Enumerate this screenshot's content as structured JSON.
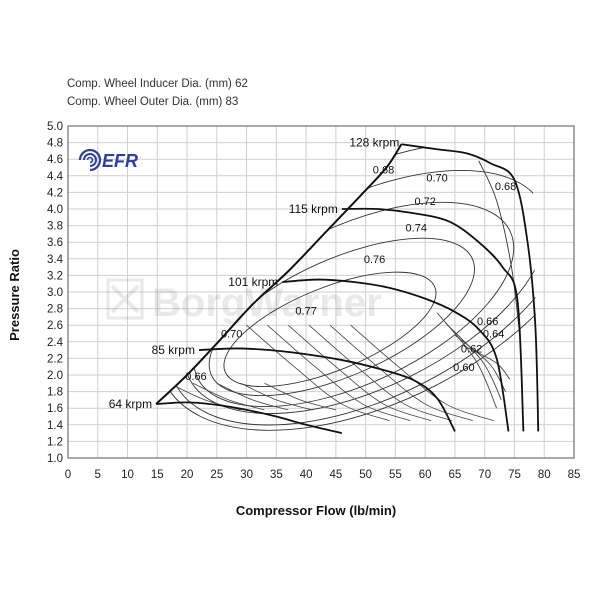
{
  "specs": {
    "inducer": "Comp. Wheel Inducer Dia. (mm) 62",
    "outer": "Comp. Wheel Outer Dia. (mm) 83"
  },
  "logo": {
    "text": "EFR",
    "color": "#2f3f9f"
  },
  "watermark": {
    "text": "BorgWarner"
  },
  "chart_data": {
    "type": "line",
    "title": "",
    "xlabel": "Compressor Flow (lb/min)",
    "ylabel": "Pressure Ratio",
    "xlim": [
      0,
      85
    ],
    "ylim": [
      1.0,
      5.0
    ],
    "x_ticks": [
      "0",
      "5",
      "10",
      "15",
      "20",
      "25",
      "30",
      "35",
      "40",
      "45",
      "50",
      "55",
      "60",
      "65",
      "70",
      "75",
      "80",
      "85"
    ],
    "y_ticks": [
      "1.0",
      "1.2",
      "1.4",
      "1.6",
      "1.8",
      "2.0",
      "2.2",
      "2.4",
      "2.6",
      "2.8",
      "3.0",
      "3.2",
      "3.4",
      "3.6",
      "3.8",
      "4.0",
      "4.2",
      "4.4",
      "4.6",
      "4.8",
      "5.0"
    ],
    "grid": true,
    "surge_line": [
      [
        14.8,
        1.65
      ],
      [
        20,
        2.0
      ],
      [
        25,
        2.38
      ],
      [
        31,
        2.85
      ],
      [
        37,
        3.25
      ],
      [
        43,
        3.7
      ],
      [
        49,
        4.15
      ],
      [
        53.5,
        4.5
      ],
      [
        56,
        4.78
      ]
    ],
    "speed_lines": [
      {
        "name": "64 krpm",
        "label": "64 krpm",
        "label_at": [
          58,
          1.63
        ],
        "points": [
          [
            14.8,
            1.65
          ],
          [
            20,
            1.67
          ],
          [
            25,
            1.64
          ],
          [
            30,
            1.58
          ],
          [
            35,
            1.5
          ],
          [
            40,
            1.4
          ],
          [
            46,
            1.3
          ]
        ]
      },
      {
        "name": "85 krpm",
        "label": "85 krpm",
        "label_at": [
          158,
          1.3
        ],
        "points": [
          [
            22,
            2.3
          ],
          [
            28,
            2.32
          ],
          [
            34,
            2.3
          ],
          [
            40,
            2.25
          ],
          [
            46,
            2.18
          ],
          [
            52,
            2.08
          ],
          [
            58,
            1.94
          ],
          [
            62,
            1.72
          ],
          [
            65,
            1.32
          ]
        ]
      },
      {
        "name": "101 krpm",
        "label": "101 krpm",
        "label_at": [
          222,
          1.82
        ],
        "points": [
          [
            36,
            3.12
          ],
          [
            42,
            3.15
          ],
          [
            48,
            3.12
          ],
          [
            54,
            3.05
          ],
          [
            60,
            2.92
          ],
          [
            65,
            2.76
          ],
          [
            69,
            2.55
          ],
          [
            72,
            2.2
          ],
          [
            74,
            1.32
          ]
        ]
      },
      {
        "name": "115 krpm",
        "label": "115 krpm",
        "label_at": [
          287,
          1.9
        ],
        "points": [
          [
            46,
            4.0
          ],
          [
            52,
            4.0
          ],
          [
            58,
            3.95
          ],
          [
            64,
            3.85
          ],
          [
            69,
            3.6
          ],
          [
            73,
            3.3
          ],
          [
            75.5,
            2.9
          ],
          [
            76.5,
            1.32
          ]
        ]
      },
      {
        "name": "128 krpm",
        "label": "128 krpm",
        "label_at": [
          330,
          2.7
        ],
        "points": [
          [
            56,
            4.78
          ],
          [
            62,
            4.72
          ],
          [
            67,
            4.67
          ],
          [
            71,
            4.55
          ],
          [
            75,
            4.35
          ],
          [
            77.2,
            3.6
          ],
          [
            78.5,
            2.6
          ],
          [
            79,
            1.32
          ]
        ]
      }
    ],
    "efficiency_islands": [
      {
        "label": "0.77",
        "label_at": [
          40,
          2.73
        ],
        "center": [
          44,
          2.55
        ],
        "rx": 19,
        "ry": 0.5,
        "rot": -22
      },
      {
        "label": "0.76",
        "label_at": [
          51.5,
          3.35
        ],
        "center": [
          46,
          2.7
        ],
        "rx": 24,
        "ry": 0.7,
        "rot": -24
      },
      {
        "label": "0.74",
        "label_at": [
          58.5,
          3.73
        ],
        "center": [
          48,
          2.85
        ],
        "rx": 29,
        "ry": 0.95,
        "rot": -25
      },
      {
        "label": "0.72",
        "label_at": [
          60,
          4.05
        ],
        "center": [
          50,
          3.0
        ],
        "rx": 33,
        "ry": 1.15,
        "rot": -26
      },
      {
        "label": "0.70",
        "label_at": [
          62,
          4.33
        ],
        "center": [
          51,
          3.1
        ],
        "rx": 37,
        "ry": 1.35,
        "rot": -27
      },
      {
        "label": "0.68",
        "label_at": [
          53,
          4.43
        ],
        "center": [
          52,
          3.2
        ],
        "rx": 40,
        "ry": 1.5,
        "rot": -27
      }
    ],
    "efficiency_labels": [
      {
        "text": "0.70",
        "x": 27.5,
        "y": 2.45
      },
      {
        "text": "0.66",
        "x": 21.5,
        "y": 1.94
      },
      {
        "text": "0.68",
        "x": 73.5,
        "y": 4.23
      },
      {
        "text": "0.66",
        "x": 70.5,
        "y": 2.6
      },
      {
        "text": "0.64",
        "x": 71.5,
        "y": 2.45
      },
      {
        "text": "0.62",
        "x": 67.8,
        "y": 2.27
      },
      {
        "text": "0.60",
        "x": 66.5,
        "y": 2.05
      }
    ]
  }
}
